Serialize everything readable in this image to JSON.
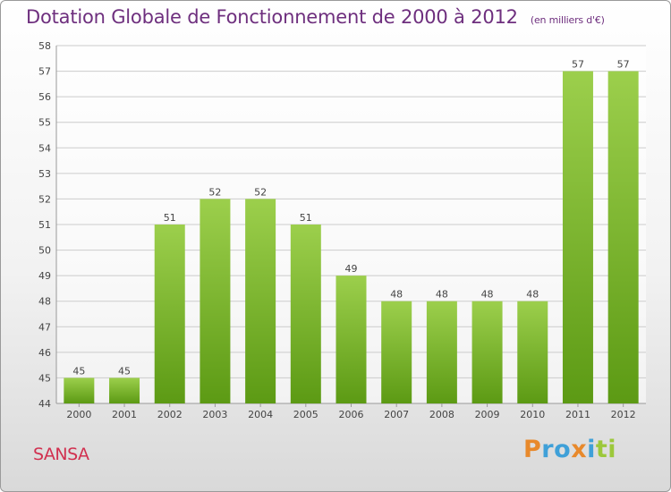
{
  "header": {
    "title": "Dotation Globale de Fonctionnement de 2000 à 2012",
    "subtitle": "(en milliers d'€)"
  },
  "footer": {
    "town": "SANSA",
    "logo": {
      "letters": [
        {
          "char": "P",
          "color": "#e8892b"
        },
        {
          "char": "r",
          "color": "#3fa0d8"
        },
        {
          "char": "o",
          "color": "#3fa0d8"
        },
        {
          "char": "x",
          "color": "#e8892b"
        },
        {
          "char": "i",
          "color": "#3fa0d8"
        },
        {
          "char": "t",
          "color": "#9cc83b"
        },
        {
          "char": "i",
          "color": "#9cc83b"
        }
      ]
    }
  },
  "colors": {
    "bar_top": "#9ccf4c",
    "bar_bottom": "#5c9a14",
    "grid": "#cccccc",
    "axis_text": "#444444"
  },
  "chart_data": {
    "type": "bar",
    "title": "Dotation Globale de Fonctionnement de 2000 à 2012",
    "subtitle": "(en milliers d'€)",
    "categories": [
      "2000",
      "2001",
      "2002",
      "2003",
      "2004",
      "2005",
      "2006",
      "2007",
      "2008",
      "2009",
      "2010",
      "2011",
      "2012"
    ],
    "values": [
      45,
      45,
      51,
      52,
      52,
      51,
      49,
      48,
      48,
      48,
      48,
      57,
      57
    ],
    "value_labels": [
      "45",
      "45",
      "51",
      "52",
      "52",
      "51",
      "49",
      "48",
      "48",
      "48",
      "48",
      "57",
      "57"
    ],
    "ylim": [
      44,
      58
    ],
    "yticks": [
      "44",
      "45",
      "46",
      "47",
      "48",
      "49",
      "50",
      "51",
      "52",
      "53",
      "54",
      "55",
      "56",
      "57",
      "58"
    ],
    "xlabel": "",
    "ylabel": "",
    "grid": true
  }
}
